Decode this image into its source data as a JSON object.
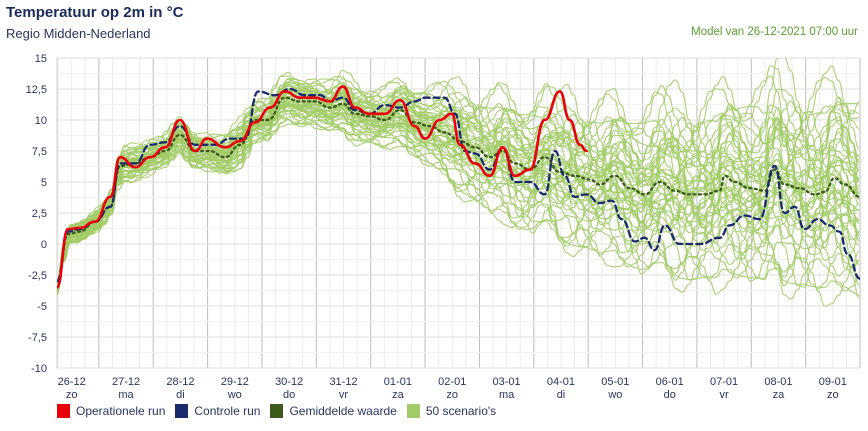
{
  "header": {
    "title": "Temperatuur op 2m in °C",
    "subtitle": "Regio Midden-Nederland",
    "model": "Model van 26-12-2021 07:00 uur"
  },
  "colors": {
    "operational": "#e8000b",
    "control": "#1a2a6c",
    "mean": "#3c5a1c",
    "scenarios": "#a3cc68",
    "grid": "#dcdcdc"
  },
  "chart_data": {
    "type": "line",
    "title": "Temperatuur op 2m in °C",
    "xlabel": "",
    "ylabel": "°C",
    "ylim": [
      -10,
      15
    ],
    "xlim": [
      0.23,
      15.0
    ],
    "x_units": "days since 26-12 00:00",
    "yticks": [
      15,
      12.5,
      10,
      7.5,
      5,
      2.5,
      0,
      -2.5,
      -5,
      -7.5,
      -10
    ],
    "ytick_labels": [
      "15",
      "12,5",
      "10",
      "7,5",
      "5",
      "2,5",
      "0",
      "-2,5",
      "-5",
      "-7,5",
      "-10"
    ],
    "xticks": [
      {
        "date": "26-12",
        "day": "zo"
      },
      {
        "date": "27-12",
        "day": "ma"
      },
      {
        "date": "28-12",
        "day": "di"
      },
      {
        "date": "29-12",
        "day": "wo"
      },
      {
        "date": "30-12",
        "day": "do"
      },
      {
        "date": "31-12",
        "day": "vr"
      },
      {
        "date": "01-01",
        "day": "za"
      },
      {
        "date": "02-01",
        "day": "zo"
      },
      {
        "date": "03-01",
        "day": "ma"
      },
      {
        "date": "04-01",
        "day": "di"
      },
      {
        "date": "05-01",
        "day": "wo"
      },
      {
        "date": "06-01",
        "day": "do"
      },
      {
        "date": "07-01",
        "day": "vr"
      },
      {
        "date": "08-01",
        "day": "za"
      },
      {
        "date": "09-01",
        "day": "zo"
      }
    ],
    "legend": [
      "Operationele run",
      "Controle run",
      "Gemiddelde waarde",
      "50 scenario's"
    ],
    "legend_position": "bottom-left",
    "series": [
      {
        "name": "Operationele run",
        "style": "solid",
        "points": [
          [
            0.23,
            -3.5
          ],
          [
            0.43,
            1.2
          ],
          [
            0.65,
            1.3
          ],
          [
            0.93,
            1.8
          ],
          [
            1.21,
            3.8
          ],
          [
            1.39,
            7.0
          ],
          [
            1.67,
            6.2
          ],
          [
            1.94,
            7.0
          ],
          [
            2.22,
            7.8
          ],
          [
            2.49,
            10.0
          ],
          [
            2.77,
            7.5
          ],
          [
            2.99,
            8.5
          ],
          [
            3.32,
            7.8
          ],
          [
            3.6,
            8.3
          ],
          [
            3.87,
            9.8
          ],
          [
            4.15,
            11.0
          ],
          [
            4.42,
            12.3
          ],
          [
            4.7,
            11.8
          ],
          [
            4.97,
            11.8
          ],
          [
            5.25,
            11.5
          ],
          [
            5.49,
            12.7
          ],
          [
            5.71,
            11.0
          ],
          [
            5.98,
            10.5
          ],
          [
            6.26,
            10.5
          ],
          [
            6.54,
            11.6
          ],
          [
            6.81,
            9.5
          ],
          [
            7.0,
            8.5
          ],
          [
            7.27,
            10.0
          ],
          [
            7.49,
            10.5
          ],
          [
            7.64,
            8.0
          ],
          [
            7.92,
            6.5
          ],
          [
            8.19,
            5.5
          ],
          [
            8.43,
            7.8
          ],
          [
            8.65,
            5.5
          ],
          [
            8.93,
            6.0
          ],
          [
            9.2,
            10.0
          ],
          [
            9.48,
            12.3
          ],
          [
            9.66,
            10.0
          ],
          [
            9.85,
            8.0
          ],
          [
            9.97,
            7.5
          ]
        ]
      },
      {
        "name": "Controle run",
        "style": "dashed",
        "points": [
          [
            0.23,
            -3.0
          ],
          [
            0.43,
            1.0
          ],
          [
            0.65,
            1.2
          ],
          [
            0.93,
            1.8
          ],
          [
            1.21,
            3.0
          ],
          [
            1.39,
            6.5
          ],
          [
            1.67,
            6.5
          ],
          [
            1.94,
            8.0
          ],
          [
            2.22,
            8.2
          ],
          [
            2.49,
            9.5
          ],
          [
            2.77,
            8.0
          ],
          [
            3.14,
            8.0
          ],
          [
            3.41,
            8.5
          ],
          [
            3.69,
            8.5
          ],
          [
            3.93,
            12.3
          ],
          [
            4.24,
            12.0
          ],
          [
            4.51,
            12.5
          ],
          [
            4.79,
            12.0
          ],
          [
            5.07,
            12.0
          ],
          [
            5.25,
            11.5
          ],
          [
            5.49,
            11.8
          ],
          [
            5.71,
            10.8
          ],
          [
            5.98,
            10.5
          ],
          [
            6.26,
            11.2
          ],
          [
            6.54,
            11.0
          ],
          [
            6.81,
            11.5
          ],
          [
            7.0,
            11.8
          ],
          [
            7.36,
            11.8
          ],
          [
            7.55,
            10.5
          ],
          [
            7.73,
            7.5
          ],
          [
            7.92,
            7.3
          ],
          [
            8.19,
            6.0
          ],
          [
            8.43,
            7.8
          ],
          [
            8.65,
            5.0
          ],
          [
            8.93,
            5.0
          ],
          [
            9.2,
            4.0
          ],
          [
            9.39,
            7.5
          ],
          [
            9.57,
            5.5
          ],
          [
            9.75,
            3.8
          ],
          [
            9.97,
            4.0
          ],
          [
            10.21,
            3.3
          ],
          [
            10.43,
            3.5
          ],
          [
            10.62,
            2.0
          ],
          [
            10.86,
            0.2
          ],
          [
            11.04,
            0.5
          ],
          [
            11.22,
            -0.5
          ],
          [
            11.41,
            1.5
          ],
          [
            11.68,
            0.0
          ],
          [
            12.05,
            0.0
          ],
          [
            12.42,
            0.5
          ],
          [
            12.6,
            1.5
          ],
          [
            12.88,
            2.3
          ],
          [
            13.15,
            2.0
          ],
          [
            13.43,
            6.3
          ],
          [
            13.61,
            2.5
          ],
          [
            13.8,
            3.0
          ],
          [
            13.98,
            1.2
          ],
          [
            14.22,
            2.0
          ],
          [
            14.44,
            1.5
          ],
          [
            14.62,
            1.0
          ],
          [
            14.77,
            -0.8
          ],
          [
            15.0,
            -2.8
          ]
        ]
      },
      {
        "name": "Gemiddelde waarde",
        "style": "dotted",
        "points": [
          [
            0.23,
            -3.5
          ],
          [
            0.43,
            0.8
          ],
          [
            0.65,
            1.0
          ],
          [
            0.93,
            1.8
          ],
          [
            1.21,
            3.0
          ],
          [
            1.39,
            6.3
          ],
          [
            1.67,
            6.5
          ],
          [
            1.94,
            7.0
          ],
          [
            2.22,
            7.5
          ],
          [
            2.49,
            8.8
          ],
          [
            2.77,
            7.5
          ],
          [
            3.04,
            7.5
          ],
          [
            3.32,
            7.0
          ],
          [
            3.6,
            8.0
          ],
          [
            3.87,
            10.0
          ],
          [
            4.11,
            10.0
          ],
          [
            4.42,
            11.8
          ],
          [
            4.7,
            11.5
          ],
          [
            4.97,
            11.5
          ],
          [
            5.25,
            11.0
          ],
          [
            5.49,
            11.3
          ],
          [
            5.71,
            10.5
          ],
          [
            5.98,
            10.3
          ],
          [
            6.26,
            10.0
          ],
          [
            6.54,
            10.8
          ],
          [
            6.81,
            9.8
          ],
          [
            7.09,
            9.5
          ],
          [
            7.36,
            9.0
          ],
          [
            7.64,
            8.3
          ],
          [
            7.92,
            7.8
          ],
          [
            8.19,
            7.0
          ],
          [
            8.43,
            7.5
          ],
          [
            8.65,
            6.5
          ],
          [
            8.93,
            6.0
          ],
          [
            9.2,
            7.0
          ],
          [
            9.48,
            5.8
          ],
          [
            9.75,
            5.5
          ],
          [
            10.03,
            5.2
          ],
          [
            10.21,
            4.8
          ],
          [
            10.49,
            5.5
          ],
          [
            10.77,
            4.5
          ],
          [
            11.04,
            4.0
          ],
          [
            11.32,
            5.0
          ],
          [
            11.59,
            4.3
          ],
          [
            11.86,
            4.0
          ],
          [
            12.14,
            4.0
          ],
          [
            12.42,
            4.3
          ],
          [
            12.51,
            5.5
          ],
          [
            12.69,
            5.0
          ],
          [
            12.97,
            4.5
          ],
          [
            13.25,
            4.3
          ],
          [
            13.43,
            6.0
          ],
          [
            13.61,
            4.8
          ],
          [
            13.89,
            4.5
          ],
          [
            14.17,
            4.0
          ],
          [
            14.35,
            4.2
          ],
          [
            14.53,
            5.3
          ],
          [
            14.72,
            4.8
          ],
          [
            15.0,
            3.8
          ]
        ]
      }
    ],
    "scenarios": {
      "count": 50,
      "spread": [
        [
          0.23,
          0.6
        ],
        [
          1.5,
          1.2
        ],
        [
          4,
          1.6
        ],
        [
          6.5,
          2.0
        ],
        [
          8,
          3.5
        ],
        [
          10,
          4.5
        ],
        [
          12,
          5.5
        ],
        [
          15,
          6.5
        ]
      ]
    }
  }
}
